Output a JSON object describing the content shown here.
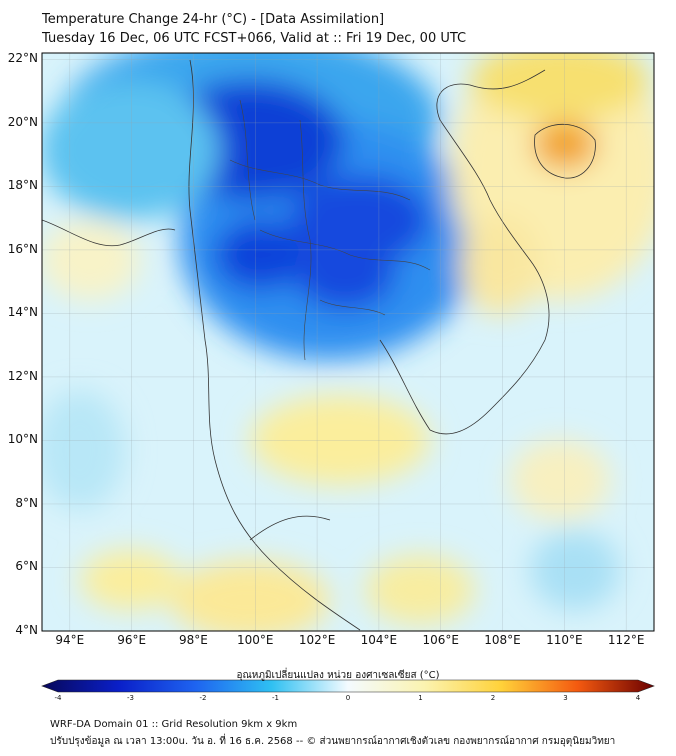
{
  "title": {
    "line1": "Temperature Change 24-hr (°C) - [Data Assimilation]",
    "line2": "Tuesday 16 Dec, 06 UTC FCST+066, Valid at :: Fri 19 Dec, 00 UTC"
  },
  "map": {
    "lat_ticks": [
      {
        "label": "22°N",
        "value": 22
      },
      {
        "label": "20°N",
        "value": 20
      },
      {
        "label": "18°N",
        "value": 18
      },
      {
        "label": "16°N",
        "value": 16
      },
      {
        "label": "14°N",
        "value": 14
      },
      {
        "label": "12°N",
        "value": 12
      },
      {
        "label": "10°N",
        "value": 10
      },
      {
        "label": "8°N",
        "value": 8
      },
      {
        "label": "6°N",
        "value": 6
      },
      {
        "label": "4°N",
        "value": 4
      }
    ],
    "lon_ticks": [
      {
        "label": "94°E",
        "value": 94
      },
      {
        "label": "96°E",
        "value": 96
      },
      {
        "label": "98°E",
        "value": 98
      },
      {
        "label": "100°E",
        "value": 100
      },
      {
        "label": "102°E",
        "value": 102
      },
      {
        "label": "104°E",
        "value": 104
      },
      {
        "label": "106°E",
        "value": 106
      },
      {
        "label": "108°E",
        "value": 108
      },
      {
        "label": "110°E",
        "value": 110
      },
      {
        "label": "112°E",
        "value": 112
      }
    ],
    "lat_range": [
      4,
      22.2
    ],
    "lon_range": [
      93.1,
      112.9
    ]
  },
  "colorbar": {
    "label": "อุณหภูมิเปลี่ยนแปลง หน่วย องศาเซลเซียส (°C)",
    "ticks": [
      "-4",
      "-3",
      "-2",
      "-1",
      "0",
      "1",
      "2",
      "3",
      "4"
    ],
    "range": [
      -4,
      4
    ]
  },
  "footer": {
    "line1": "WRF-DA Domain 01 :: Grid Resolution 9km x 9km",
    "line2": "ปรับปรุงข้อมูล ณ เวลา 13:00u. วัน อ. ที่ 16 ธ.ค. 2568 -- © ส่วนพยากรณ์อากาศเชิงตัวเลข กองพยากรณ์อากาศ กรมอุตุนิยมวิทยา"
  }
}
